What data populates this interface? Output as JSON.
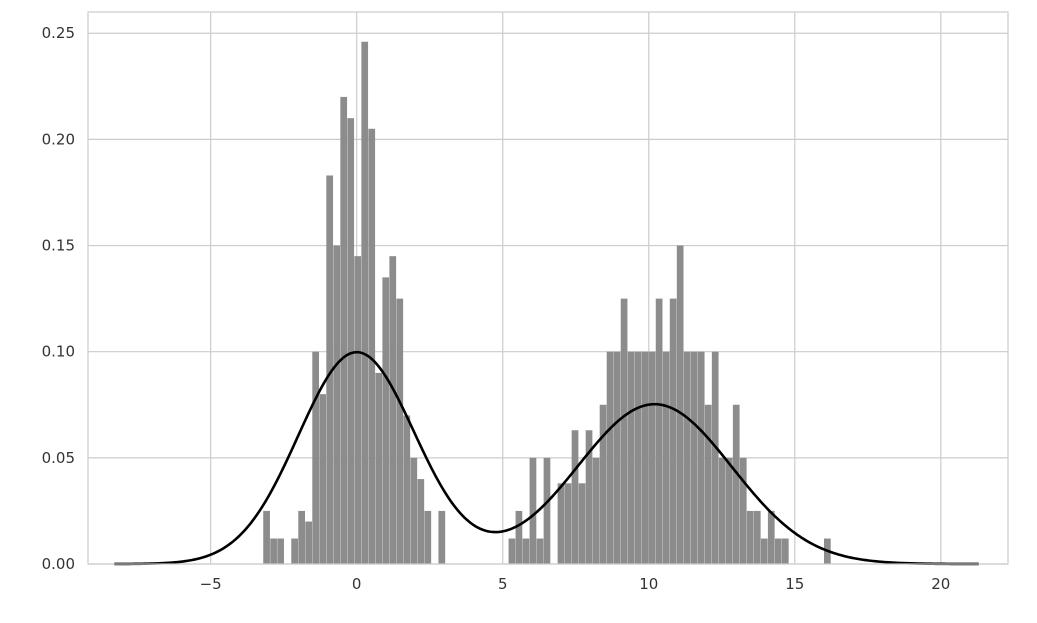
{
  "chart_data": {
    "type": "histogram",
    "title": "",
    "xlabel": "",
    "ylabel": "",
    "xlim": [
      -9.2,
      22.3
    ],
    "ylim": [
      0,
      0.26
    ],
    "grid": true,
    "x_ticks": [
      -5,
      0,
      5,
      10,
      15,
      20
    ],
    "x_tick_labels": [
      "−5",
      "0",
      "5",
      "10",
      "15",
      "20"
    ],
    "y_ticks": [
      0,
      0.05,
      0.1,
      0.15,
      0.2,
      0.25
    ],
    "y_tick_labels": [
      "0.00",
      "0.05",
      "0.10",
      "0.15",
      "0.20",
      "0.25"
    ],
    "histogram": {
      "color": "#8c8c8c",
      "bin_width": 0.24,
      "bins_left_edges": [
        -3.2,
        -2.96,
        -2.72,
        -2.48,
        -2.24,
        -2.0,
        -1.76,
        -1.52,
        -1.28,
        -1.04,
        -0.8,
        -0.56,
        -0.32,
        -0.08,
        0.16,
        0.4,
        0.64,
        0.88,
        1.12,
        1.36,
        1.6,
        1.84,
        2.08,
        2.32,
        2.56,
        2.8,
        3.04,
        3.28,
        3.52,
        3.76,
        4.0,
        4.24,
        4.48,
        4.72,
        4.96,
        5.2,
        5.44,
        5.68,
        5.92,
        6.16,
        6.4,
        6.64,
        6.88,
        7.12,
        7.36,
        7.6,
        7.84,
        8.08,
        8.32,
        8.56,
        8.8,
        9.04,
        9.28,
        9.52,
        9.76,
        10.0,
        10.24,
        10.48,
        10.72,
        10.96,
        11.2,
        11.44,
        11.68,
        11.92,
        12.16,
        12.4,
        12.64,
        12.88,
        13.12,
        13.36,
        13.6,
        13.84,
        14.08,
        14.32,
        14.56,
        14.8,
        15.04,
        15.28,
        15.52,
        15.76
      ],
      "densities": [
        0.025,
        0.012,
        0.012,
        0.0,
        0.012,
        0.025,
        0.02,
        0.1,
        0.08,
        0.183,
        0.15,
        0.22,
        0.21,
        0.145,
        0.246,
        0.205,
        0.09,
        0.135,
        0.145,
        0.125,
        0.07,
        0.05,
        0.04,
        0.025,
        0.0,
        0.025,
        0.0,
        0.0,
        0.0,
        0.0,
        0.0,
        0.0,
        0.0,
        0.0,
        0.0,
        0.012,
        0.025,
        0.012,
        0.05,
        0.012,
        0.05,
        0.0,
        0.038,
        0.038,
        0.063,
        0.038,
        0.063,
        0.05,
        0.075,
        0.1,
        0.1,
        0.125,
        0.1,
        0.1,
        0.1,
        0.1,
        0.125,
        0.1,
        0.125,
        0.15,
        0.1,
        0.1,
        0.1,
        0.075,
        0.1,
        0.05,
        0.05,
        0.075,
        0.05,
        0.025,
        0.025,
        0.012,
        0.025,
        0.012,
        0.012,
        0.0,
        0.0,
        0.0,
        0.0,
        0.0
      ],
      "extra_bars": [
        {
          "x": 16.0,
          "density": 0.012
        }
      ]
    },
    "kde": {
      "color": "#000000",
      "components": [
        {
          "weight": 0.5,
          "mean": 0.0,
          "std": 2.0
        },
        {
          "weight": 0.5,
          "mean": 10.2,
          "std": 2.65
        }
      ],
      "x_range": [
        -8.3,
        21.3
      ]
    }
  }
}
